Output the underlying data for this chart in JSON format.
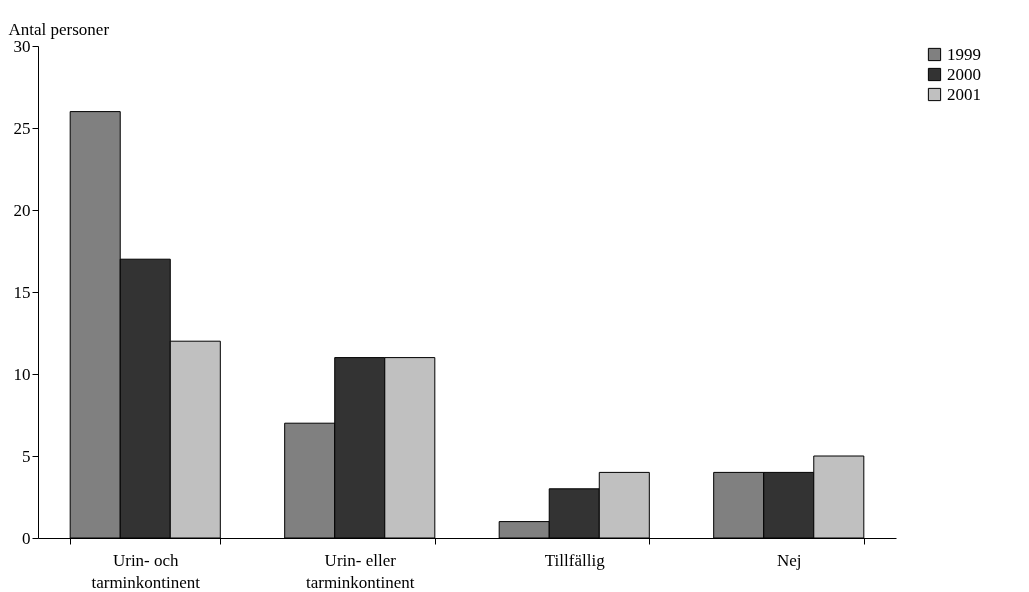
{
  "chart_data": {
    "type": "bar",
    "ylabel": "Antal personer",
    "categories": [
      "Urin- och\ntarminkontinent",
      "Urin- eller\ntarminkontinent",
      "Tillfällig",
      "Nej"
    ],
    "series": [
      {
        "name": "1999",
        "color": "#808080",
        "values": [
          26,
          7,
          1,
          4
        ]
      },
      {
        "name": "2000",
        "color": "#333333",
        "values": [
          17,
          11,
          3,
          4
        ]
      },
      {
        "name": "2001",
        "color": "#c0c0c0",
        "values": [
          12,
          11,
          4,
          5
        ]
      }
    ],
    "ylim": [
      0,
      30
    ],
    "yticks": [
      0,
      5,
      10,
      15,
      20,
      25,
      30
    ],
    "grid": false,
    "legend": "right"
  }
}
